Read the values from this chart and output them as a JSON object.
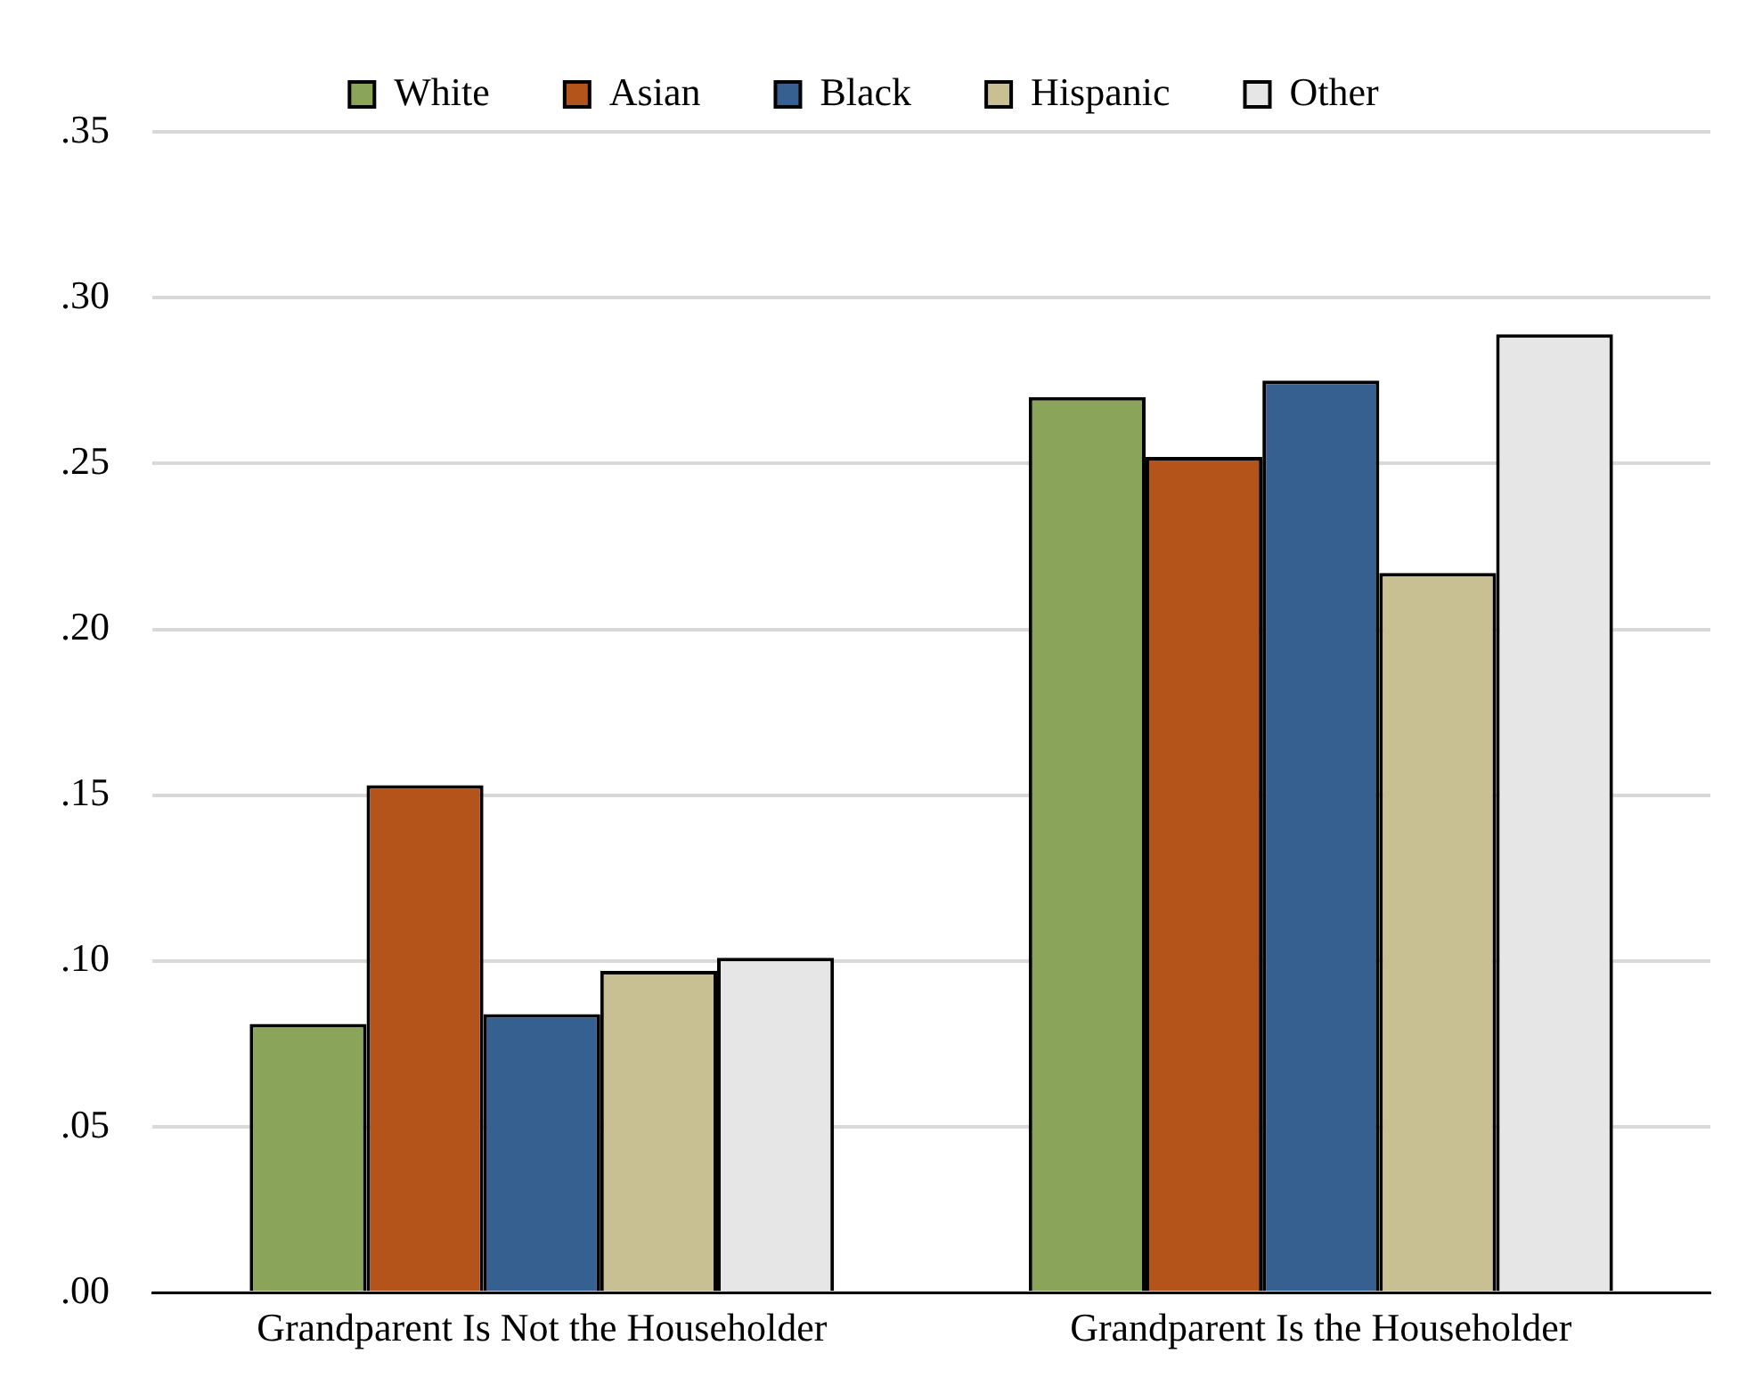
{
  "chart_data": {
    "type": "bar",
    "categories": [
      "Grandparent Is Not the Householder",
      "Grandparent Is the Householder"
    ],
    "series": [
      {
        "name": "White",
        "color": "#8aa55a",
        "values": [
          0.081,
          0.27
        ]
      },
      {
        "name": "Asian",
        "color": "#b5541a",
        "values": [
          0.153,
          0.252
        ]
      },
      {
        "name": "Black",
        "color": "#35608f",
        "values": [
          0.084,
          0.275
        ]
      },
      {
        "name": "Hispanic",
        "color": "#c8bf93",
        "values": [
          0.097,
          0.217
        ]
      },
      {
        "name": "Other",
        "color": "#e6e6e6",
        "values": [
          0.101,
          0.289
        ]
      }
    ],
    "ylim": [
      0,
      0.35
    ],
    "yticks": [
      {
        "value": 0,
        "label": ".00"
      },
      {
        "value": 0.05,
        "label": ".05"
      },
      {
        "value": 0.1,
        "label": ".10"
      },
      {
        "value": 0.15,
        "label": ".15"
      },
      {
        "value": 0.2,
        "label": ".20"
      },
      {
        "value": 0.25,
        "label": ".25"
      },
      {
        "value": 0.3,
        "label": ".30"
      },
      {
        "value": 0.35,
        "label": ".35"
      }
    ],
    "grid": "y",
    "legend": "top"
  }
}
